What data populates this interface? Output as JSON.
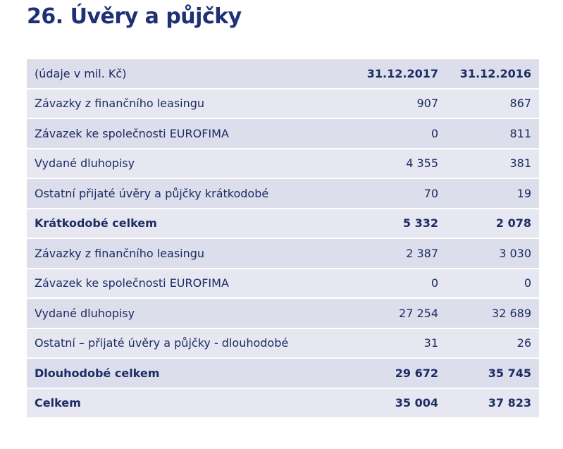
{
  "title": "26.  Úvěry a půjčky",
  "header": {
    "label": "(údaje v mil. Kč)",
    "col1": "31.12.2017",
    "col2": "31.12.2016"
  },
  "rows": [
    {
      "label": "Závazky z finančního leasingu",
      "v1": "907",
      "v2": "867",
      "bold": false
    },
    {
      "label": "Závazek ke společnosti EUROFIMA",
      "v1": "0",
      "v2": "811",
      "bold": false
    },
    {
      "label": "Vydané dluhopisy",
      "v1": "4 355",
      "v2": "381",
      "bold": false
    },
    {
      "label": "Ostatní přijaté úvěry a půjčky krátkodobé",
      "v1": "70",
      "v2": "19",
      "bold": false
    },
    {
      "label": "Krátkodobé celkem",
      "v1": "5 332",
      "v2": "2 078",
      "bold": true
    },
    {
      "label": "Závazky z finančního leasingu",
      "v1": "2 387",
      "v2": "3 030",
      "bold": false
    },
    {
      "label": "Závazek ke společnosti EUROFIMA",
      "v1": "0",
      "v2": "0",
      "bold": false
    },
    {
      "label": "Vydané dluhopisy",
      "v1": "27 254",
      "v2": "32 689",
      "bold": false
    },
    {
      "label": "Ostatní – přijaté úvěry a půjčky - dlouhodobé",
      "v1": "31",
      "v2": "26",
      "bold": false
    },
    {
      "label": "Dlouhodobé celkem",
      "v1": "29 672",
      "v2": "35 745",
      "bold": true
    },
    {
      "label": "Celkem",
      "v1": "35 004",
      "v2": "37 823",
      "bold": true
    }
  ]
}
